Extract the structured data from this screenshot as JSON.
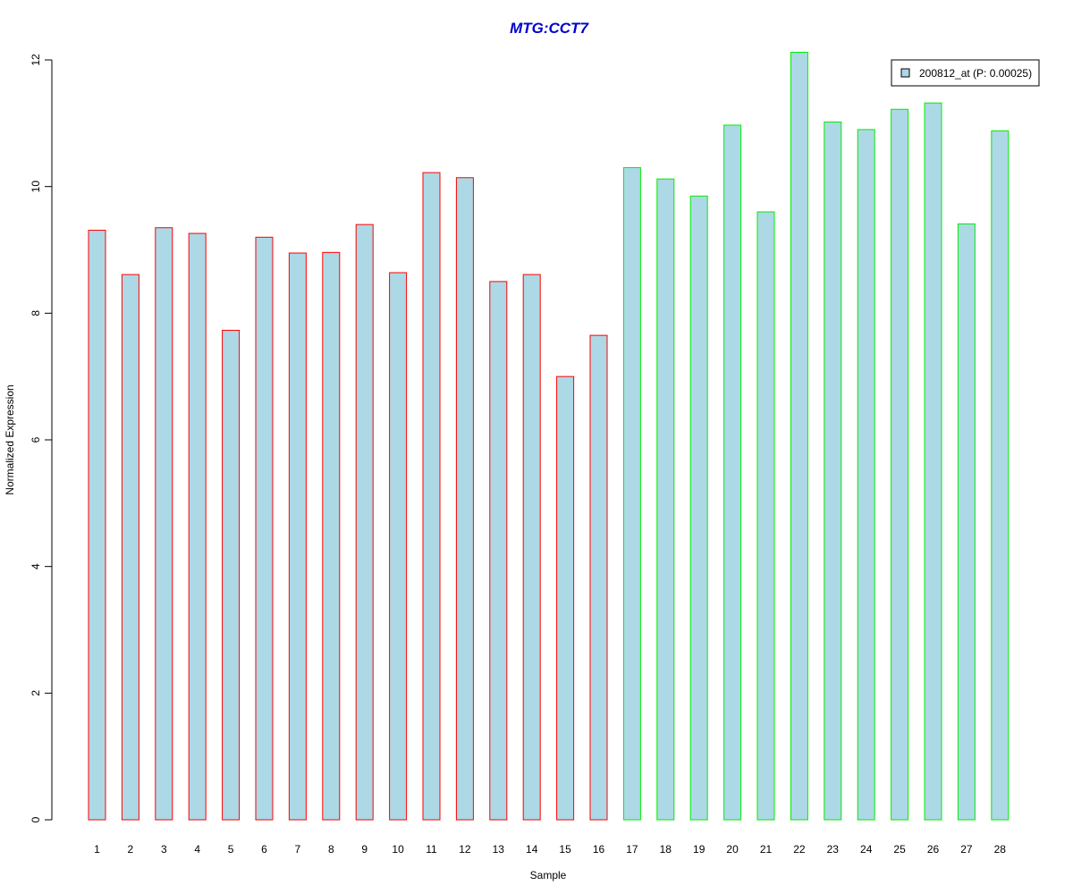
{
  "chart_data": {
    "type": "bar",
    "title": "MTG:CCT7",
    "xlabel": "Sample",
    "ylabel": "Normalized Expression",
    "ylim": [
      0,
      12
    ],
    "y_ticks": [
      "0",
      "2",
      "4",
      "6",
      "8",
      "10",
      "12"
    ],
    "categories": [
      "1",
      "2",
      "3",
      "4",
      "5",
      "6",
      "7",
      "8",
      "9",
      "10",
      "11",
      "12",
      "13",
      "14",
      "15",
      "16",
      "17",
      "18",
      "19",
      "20",
      "21",
      "22",
      "23",
      "24",
      "25",
      "26",
      "27",
      "28"
    ],
    "series": [
      {
        "name": "200812_at (P: 0.00025)",
        "values": [
          9.31,
          8.61,
          9.35,
          9.26,
          7.73,
          9.2,
          8.95,
          8.96,
          9.4,
          8.64,
          10.22,
          10.14,
          8.5,
          8.61,
          7.0,
          7.65,
          10.3,
          10.12,
          9.85,
          10.97,
          9.6,
          12.12,
          11.02,
          10.9,
          11.22,
          11.32,
          9.41,
          10.88
        ]
      }
    ],
    "group_edge_colors": [
      "#ff0000",
      "#ff0000",
      "#ff0000",
      "#ff0000",
      "#ff0000",
      "#ff0000",
      "#ff0000",
      "#ff0000",
      "#ff0000",
      "#ff0000",
      "#ff0000",
      "#ff0000",
      "#ff0000",
      "#ff0000",
      "#ff0000",
      "#ff0000",
      "#00ee00",
      "#00ee00",
      "#00ee00",
      "#00ee00",
      "#00ee00",
      "#00ee00",
      "#00ee00",
      "#00ee00",
      "#00ee00",
      "#00ee00",
      "#00ee00",
      "#00ee00"
    ],
    "bar_fill": "#add8e6",
    "title_color": "#0000cd",
    "legend_position": "top-right",
    "grid": false
  }
}
